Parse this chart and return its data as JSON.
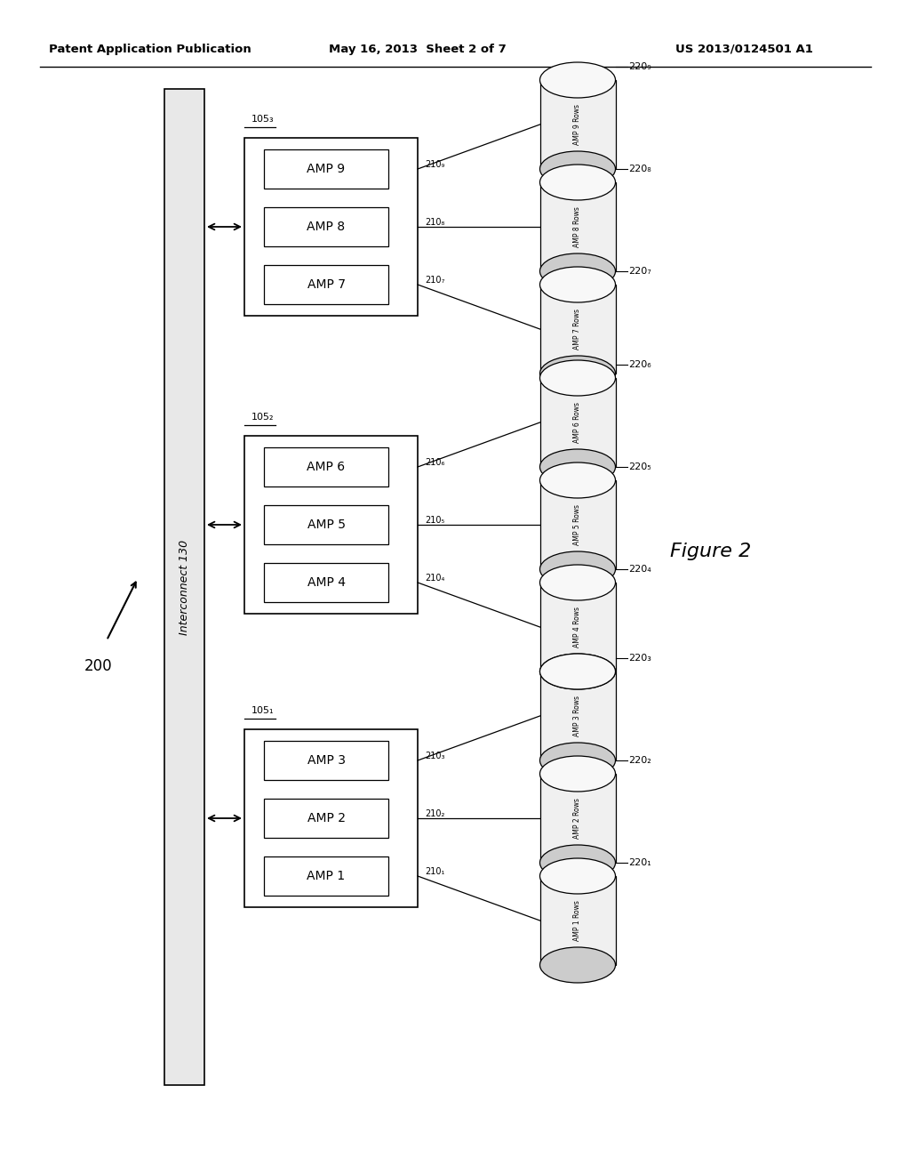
{
  "bg_color": "#ffffff",
  "header_left": "Patent Application Publication",
  "header_center": "May 16, 2013  Sheet 2 of 7",
  "header_right": "US 2013/0124501 A1",
  "figure_label": "Figure 2",
  "diagram_label": "200",
  "interconnect_label": "Interconnect 130",
  "nodes": [
    {
      "label": "105₁",
      "amps": [
        "AMP 3",
        "AMP 2",
        "AMP 1"
      ],
      "amp_ids": [
        "210₃",
        "210₂",
        "210₁"
      ],
      "cylinders": [
        {
          "label": "AMP 3 Rows",
          "id": "220₃"
        },
        {
          "label": "AMP 2 Rows",
          "id": "220₂"
        },
        {
          "label": "AMP 1 Rows",
          "id": "220₁"
        }
      ]
    },
    {
      "label": "105₂",
      "amps": [
        "AMP 6",
        "AMP 5",
        "AMP 4"
      ],
      "amp_ids": [
        "210₆",
        "210₅",
        "210₄"
      ],
      "cylinders": [
        {
          "label": "AMP 6 Rows",
          "id": "220₆"
        },
        {
          "label": "AMP 5 Rows",
          "id": "220₅"
        },
        {
          "label": "AMP 4 Rows",
          "id": "220₄"
        }
      ]
    },
    {
      "label": "105₃",
      "amps": [
        "AMP 9",
        "AMP 8",
        "AMP 7"
      ],
      "amp_ids": [
        "210₉",
        "210₈",
        "210₇"
      ],
      "cylinders": [
        {
          "label": "AMP 9 Rows",
          "id": "220₉"
        },
        {
          "label": "AMP 8 Rows",
          "id": "220₈"
        },
        {
          "label": "AMP 7 Rows",
          "id": "220₇"
        }
      ]
    }
  ]
}
